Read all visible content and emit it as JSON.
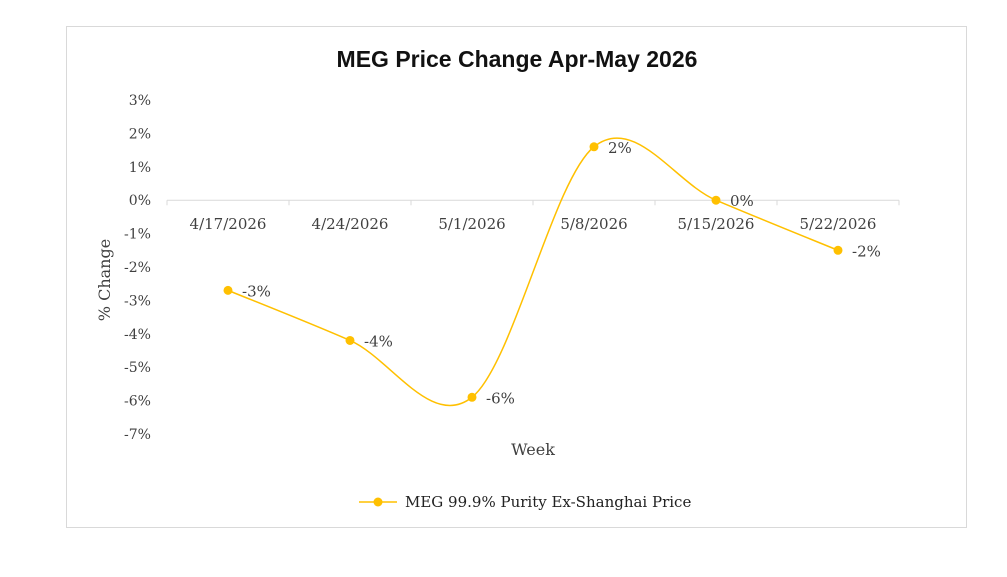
{
  "chart_data": {
    "type": "line",
    "title": "MEG Price Change Apr-May 2026",
    "xlabel": "Week",
    "ylabel": "% Change",
    "categories": [
      "4/17/2026",
      "4/24/2026",
      "5/1/2026",
      "5/8/2026",
      "5/15/2026",
      "5/22/2026"
    ],
    "series": [
      {
        "name": "MEG 99.9% Purity Ex-Shanghai Price",
        "values": [
          -2.7,
          -4.2,
          -5.9,
          1.6,
          0.0,
          -1.5
        ],
        "data_labels": [
          "-3%",
          "-4%",
          "-6%",
          "2%",
          "0%",
          "-2%"
        ],
        "color": "#ffc000"
      }
    ],
    "ylim": [
      -7,
      3
    ],
    "yticks": [
      "3%",
      "2%",
      "1%",
      "0%",
      "-1%",
      "-2%",
      "-3%",
      "-4%",
      "-5%",
      "-6%",
      "-7%"
    ],
    "legend": "bottom",
    "grid": false,
    "smooth": true
  }
}
